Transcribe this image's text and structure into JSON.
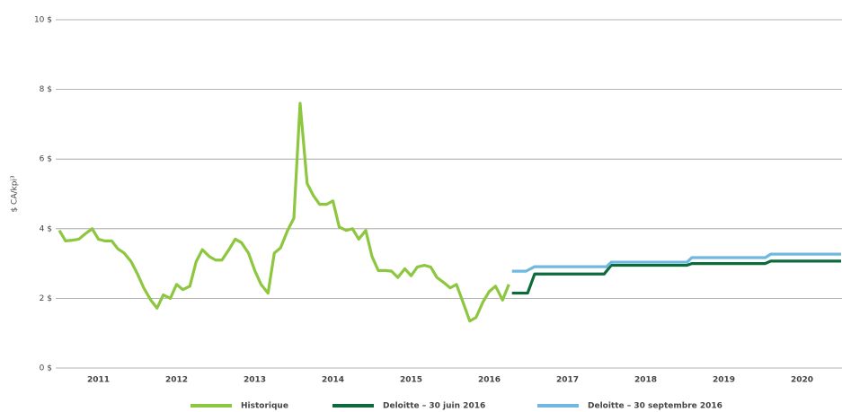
{
  "chart_data": {
    "type": "line",
    "y_label": "$ CA/kpi³",
    "xlim": [
      2011,
      2021
    ],
    "ylim": [
      0,
      10
    ],
    "yticks": [
      {
        "value": 0,
        "label": "0 $"
      },
      {
        "value": 2,
        "label": "2 $"
      },
      {
        "value": 4,
        "label": "4 $"
      },
      {
        "value": 6,
        "label": "6 $"
      },
      {
        "value": 8,
        "label": "8 $"
      },
      {
        "value": 10,
        "label": "10 $"
      }
    ],
    "xticks": [
      {
        "value": 2011.5,
        "label": "2011"
      },
      {
        "value": 2012.5,
        "label": "2012"
      },
      {
        "value": 2013.5,
        "label": "2013"
      },
      {
        "value": 2014.5,
        "label": "2014"
      },
      {
        "value": 2015.5,
        "label": "2015"
      },
      {
        "value": 2016.5,
        "label": "2016"
      },
      {
        "value": 2017.5,
        "label": "2017"
      },
      {
        "value": 2018.5,
        "label": "2018"
      },
      {
        "value": 2019.5,
        "label": "2019"
      },
      {
        "value": 2020.5,
        "label": "2020"
      }
    ],
    "grid": true,
    "legend": "bottom",
    "series": [
      {
        "name": "Historique",
        "color": "#8dc63f",
        "x": [
          2011.0,
          2011.08,
          2011.17,
          2011.25,
          2011.33,
          2011.42,
          2011.5,
          2011.58,
          2011.67,
          2011.75,
          2011.83,
          2011.92,
          2012.0,
          2012.08,
          2012.17,
          2012.25,
          2012.33,
          2012.42,
          2012.5,
          2012.58,
          2012.67,
          2012.75,
          2012.83,
          2012.92,
          2013.0,
          2013.08,
          2013.17,
          2013.25,
          2013.33,
          2013.42,
          2013.5,
          2013.58,
          2013.67,
          2013.75,
          2013.83,
          2013.92,
          2014.0,
          2014.08,
          2014.17,
          2014.25,
          2014.33,
          2014.42,
          2014.5,
          2014.58,
          2014.67,
          2014.75,
          2014.83,
          2014.92,
          2015.0,
          2015.08,
          2015.17,
          2015.25,
          2015.33,
          2015.42,
          2015.5,
          2015.58,
          2015.67,
          2015.75,
          2015.83,
          2015.92,
          2016.0,
          2016.08,
          2016.17,
          2016.25,
          2016.33,
          2016.42,
          2016.5,
          2016.58,
          2016.67,
          2016.75
        ],
        "values": [
          3.95,
          3.65,
          3.67,
          3.7,
          3.85,
          4.0,
          3.7,
          3.65,
          3.65,
          3.42,
          3.3,
          3.05,
          2.7,
          2.3,
          1.95,
          1.72,
          2.1,
          2.0,
          2.4,
          2.25,
          2.35,
          3.05,
          3.4,
          3.2,
          3.1,
          3.1,
          3.4,
          3.7,
          3.6,
          3.3,
          2.8,
          2.4,
          2.15,
          3.3,
          3.45,
          3.95,
          4.3,
          7.6,
          5.3,
          4.95,
          4.7,
          4.7,
          4.8,
          4.05,
          3.95,
          4.0,
          3.7,
          3.95,
          3.2,
          2.8,
          2.8,
          2.78,
          2.6,
          2.85,
          2.65,
          2.9,
          2.95,
          2.9,
          2.6,
          2.45,
          2.3,
          2.4,
          1.85,
          1.35,
          1.45,
          1.9,
          2.2,
          2.35,
          1.95,
          2.4
        ]
      },
      {
        "name": "Deloitte – 30 juin 2016",
        "color": "#0b6b3a",
        "x": [
          2016.79,
          2016.99,
          2017.08,
          2017.97,
          2018.06,
          2019.03,
          2019.09,
          2020.03,
          2020.1,
          2021.0
        ],
        "values": [
          2.15,
          2.15,
          2.7,
          2.7,
          2.95,
          2.95,
          3.0,
          3.0,
          3.07,
          3.07
        ]
      },
      {
        "name": "Deloitte – 30 septembre 2016",
        "color": "#6fb8e0",
        "x": [
          2016.79,
          2016.97,
          2017.08,
          2018.0,
          2018.06,
          2019.03,
          2019.09,
          2020.03,
          2020.1,
          2021.0
        ],
        "values": [
          2.78,
          2.78,
          2.91,
          2.91,
          3.04,
          3.04,
          3.17,
          3.17,
          3.27,
          3.27
        ]
      }
    ]
  }
}
